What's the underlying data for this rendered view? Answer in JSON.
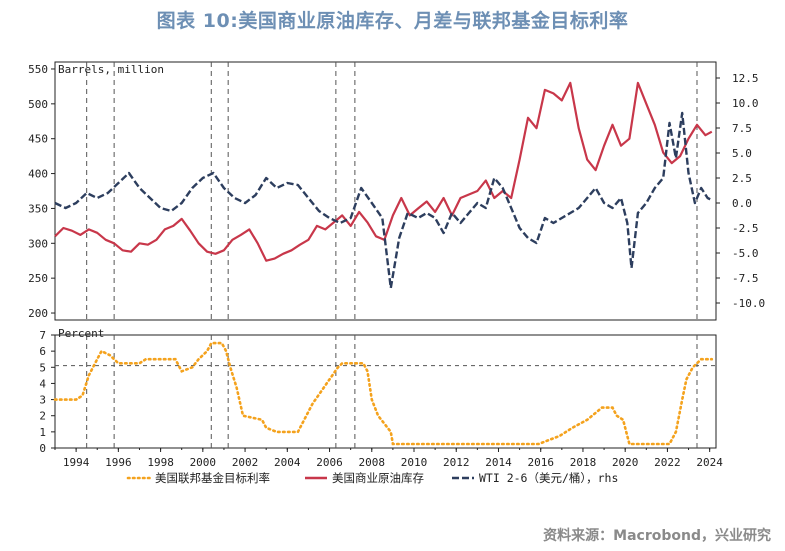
{
  "title": "图表 10:美国商业原油库存、月差与联邦基金目标利率",
  "source": "资料来源：Macrobond，兴业研究",
  "colors": {
    "fed": "#f4a21d",
    "stock": "#c8374a",
    "wti": "#2d3e5e",
    "title": "#6d8fb4"
  },
  "chart_data": [
    {
      "type": "line",
      "panel": "top",
      "ylabel": "Barrels, million",
      "ylim": [
        190,
        560
      ],
      "yticks": [
        200,
        250,
        300,
        350,
        400,
        450,
        500,
        550
      ],
      "y2lim": [
        -11.7,
        14.1
      ],
      "y2ticks": [
        "-10.0",
        "-7.5",
        "-5.0",
        "-2.5",
        "0.0",
        "2.5",
        "5.0",
        "7.5",
        "10.0",
        "12.5"
      ],
      "y2label": "rhs",
      "x_range": [
        1993.0,
        2024.3
      ],
      "series": [
        {
          "name": "美国商业原油库存",
          "axis": "left",
          "style": "solid",
          "points": [
            [
              1993.0,
              310
            ],
            [
              1993.4,
              322
            ],
            [
              1993.8,
              318
            ],
            [
              1994.2,
              312
            ],
            [
              1994.6,
              320
            ],
            [
              1995.0,
              315
            ],
            [
              1995.4,
              305
            ],
            [
              1995.8,
              300
            ],
            [
              1996.2,
              290
            ],
            [
              1996.6,
              288
            ],
            [
              1997.0,
              300
            ],
            [
              1997.4,
              298
            ],
            [
              1997.8,
              305
            ],
            [
              1998.2,
              320
            ],
            [
              1998.6,
              325
            ],
            [
              1999.0,
              335
            ],
            [
              1999.4,
              318
            ],
            [
              1999.8,
              300
            ],
            [
              2000.2,
              288
            ],
            [
              2000.6,
              285
            ],
            [
              2001.0,
              290
            ],
            [
              2001.4,
              305
            ],
            [
              2001.8,
              312
            ],
            [
              2002.2,
              320
            ],
            [
              2002.6,
              300
            ],
            [
              2003.0,
              275
            ],
            [
              2003.4,
              278
            ],
            [
              2003.8,
              285
            ],
            [
              2004.2,
              290
            ],
            [
              2004.6,
              298
            ],
            [
              2005.0,
              305
            ],
            [
              2005.4,
              325
            ],
            [
              2005.8,
              320
            ],
            [
              2006.2,
              330
            ],
            [
              2006.6,
              340
            ],
            [
              2007.0,
              325
            ],
            [
              2007.4,
              345
            ],
            [
              2007.8,
              330
            ],
            [
              2008.2,
              310
            ],
            [
              2008.6,
              305
            ],
            [
              2009.0,
              340
            ],
            [
              2009.4,
              365
            ],
            [
              2009.8,
              340
            ],
            [
              2010.2,
              350
            ],
            [
              2010.6,
              360
            ],
            [
              2011.0,
              345
            ],
            [
              2011.4,
              365
            ],
            [
              2011.8,
              340
            ],
            [
              2012.2,
              365
            ],
            [
              2012.6,
              370
            ],
            [
              2013.0,
              375
            ],
            [
              2013.4,
              390
            ],
            [
              2013.8,
              365
            ],
            [
              2014.2,
              375
            ],
            [
              2014.6,
              365
            ],
            [
              2015.0,
              420
            ],
            [
              2015.4,
              480
            ],
            [
              2015.8,
              465
            ],
            [
              2016.2,
              520
            ],
            [
              2016.6,
              515
            ],
            [
              2017.0,
              505
            ],
            [
              2017.4,
              530
            ],
            [
              2017.8,
              465
            ],
            [
              2018.2,
              420
            ],
            [
              2018.6,
              405
            ],
            [
              2019.0,
              440
            ],
            [
              2019.4,
              470
            ],
            [
              2019.8,
              440
            ],
            [
              2020.2,
              450
            ],
            [
              2020.6,
              530
            ],
            [
              2021.0,
              500
            ],
            [
              2021.4,
              470
            ],
            [
              2021.8,
              430
            ],
            [
              2022.2,
              415
            ],
            [
              2022.6,
              425
            ],
            [
              2023.0,
              450
            ],
            [
              2023.4,
              470
            ],
            [
              2023.8,
              455
            ],
            [
              2024.1,
              460
            ]
          ]
        },
        {
          "name": "WTI 2-6（美元/桶）",
          "axis": "right",
          "style": "dashed",
          "points": [
            [
              1993.0,
              0.0
            ],
            [
              1993.5,
              -0.5
            ],
            [
              1994.0,
              0.0
            ],
            [
              1994.5,
              1.0
            ],
            [
              1995.0,
              0.5
            ],
            [
              1995.5,
              1.0
            ],
            [
              1996.0,
              2.0
            ],
            [
              1996.5,
              3.0
            ],
            [
              1997.0,
              1.5
            ],
            [
              1997.5,
              0.5
            ],
            [
              1998.0,
              -0.5
            ],
            [
              1998.5,
              -0.8
            ],
            [
              1999.0,
              0.0
            ],
            [
              1999.5,
              1.5
            ],
            [
              2000.0,
              2.5
            ],
            [
              2000.5,
              3.0
            ],
            [
              2001.0,
              1.5
            ],
            [
              2001.5,
              0.5
            ],
            [
              2002.0,
              0.0
            ],
            [
              2002.5,
              0.8
            ],
            [
              2003.0,
              2.5
            ],
            [
              2003.5,
              1.5
            ],
            [
              2004.0,
              2.0
            ],
            [
              2004.5,
              1.8
            ],
            [
              2005.0,
              0.5
            ],
            [
              2005.5,
              -0.8
            ],
            [
              2006.0,
              -1.5
            ],
            [
              2006.5,
              -2.0
            ],
            [
              2007.0,
              -1.5
            ],
            [
              2007.5,
              1.5
            ],
            [
              2008.0,
              0.0
            ],
            [
              2008.5,
              -1.5
            ],
            [
              2008.9,
              -8.5
            ],
            [
              2009.3,
              -3.5
            ],
            [
              2009.7,
              -1.0
            ],
            [
              2010.2,
              -1.5
            ],
            [
              2010.6,
              -1.0
            ],
            [
              2011.0,
              -1.5
            ],
            [
              2011.4,
              -3.0
            ],
            [
              2011.8,
              -1.0
            ],
            [
              2012.2,
              -2.0
            ],
            [
              2012.6,
              -1.0
            ],
            [
              2013.0,
              0.0
            ],
            [
              2013.4,
              -0.5
            ],
            [
              2013.8,
              2.5
            ],
            [
              2014.2,
              1.5
            ],
            [
              2014.6,
              -0.5
            ],
            [
              2015.0,
              -2.5
            ],
            [
              2015.4,
              -3.5
            ],
            [
              2015.8,
              -4.0
            ],
            [
              2016.2,
              -1.5
            ],
            [
              2016.6,
              -2.0
            ],
            [
              2017.0,
              -1.5
            ],
            [
              2017.4,
              -1.0
            ],
            [
              2017.8,
              -0.5
            ],
            [
              2018.2,
              0.5
            ],
            [
              2018.6,
              1.5
            ],
            [
              2019.0,
              0.0
            ],
            [
              2019.4,
              -0.5
            ],
            [
              2019.8,
              0.5
            ],
            [
              2020.1,
              -2.0
            ],
            [
              2020.3,
              -6.5
            ],
            [
              2020.6,
              -1.0
            ],
            [
              2021.0,
              0.0
            ],
            [
              2021.4,
              1.5
            ],
            [
              2021.8,
              2.5
            ],
            [
              2022.1,
              8.0
            ],
            [
              2022.4,
              4.5
            ],
            [
              2022.7,
              9.0
            ],
            [
              2023.0,
              3.0
            ],
            [
              2023.3,
              0.0
            ],
            [
              2023.6,
              1.5
            ],
            [
              2023.9,
              0.5
            ],
            [
              2024.1,
              0.3
            ]
          ]
        }
      ]
    },
    {
      "type": "line",
      "panel": "bottom",
      "ylabel": "Percent",
      "ylim": [
        0,
        7
      ],
      "yticks": [
        0,
        1,
        2,
        3,
        4,
        5,
        6,
        7
      ],
      "reference_line": 5.1,
      "x_range": [
        1993.0,
        2024.3
      ],
      "xticks": [
        "1994",
        "1996",
        "1998",
        "2000",
        "2002",
        "2004",
        "2006",
        "2008",
        "2010",
        "2012",
        "2014",
        "2016",
        "2018",
        "2020",
        "2022",
        "2024"
      ],
      "vlines": [
        1994.5,
        1995.8,
        2000.4,
        2001.2,
        2006.3,
        2007.2,
        2023.4
      ],
      "series": [
        {
          "name": "美国联邦基金目标利率",
          "axis": "left",
          "style": "dotted",
          "points": [
            [
              1993.0,
              3.0
            ],
            [
              1994.0,
              3.0
            ],
            [
              1994.3,
              3.25
            ],
            [
              1994.6,
              4.5
            ],
            [
              1995.0,
              5.5
            ],
            [
              1995.2,
              6.0
            ],
            [
              1995.6,
              5.75
            ],
            [
              1996.0,
              5.25
            ],
            [
              1997.0,
              5.25
            ],
            [
              1997.3,
              5.5
            ],
            [
              1998.7,
              5.5
            ],
            [
              1998.9,
              5.0
            ],
            [
              1999.0,
              4.75
            ],
            [
              1999.5,
              5.0
            ],
            [
              1999.8,
              5.5
            ],
            [
              2000.2,
              6.0
            ],
            [
              2000.4,
              6.5
            ],
            [
              2000.9,
              6.5
            ],
            [
              2001.1,
              6.0
            ],
            [
              2001.3,
              5.0
            ],
            [
              2001.6,
              3.75
            ],
            [
              2001.9,
              2.0
            ],
            [
              2002.8,
              1.75
            ],
            [
              2003.0,
              1.25
            ],
            [
              2003.5,
              1.0
            ],
            [
              2004.5,
              1.0
            ],
            [
              2004.8,
              1.75
            ],
            [
              2005.2,
              2.75
            ],
            [
              2005.6,
              3.5
            ],
            [
              2006.0,
              4.25
            ],
            [
              2006.4,
              5.0
            ],
            [
              2006.6,
              5.25
            ],
            [
              2007.6,
              5.25
            ],
            [
              2007.8,
              4.75
            ],
            [
              2008.0,
              3.0
            ],
            [
              2008.3,
              2.0
            ],
            [
              2008.9,
              1.0
            ],
            [
              2009.0,
              0.25
            ],
            [
              2015.9,
              0.25
            ],
            [
              2016.9,
              0.75
            ],
            [
              2017.5,
              1.25
            ],
            [
              2018.2,
              1.75
            ],
            [
              2018.9,
              2.5
            ],
            [
              2019.4,
              2.5
            ],
            [
              2019.6,
              2.0
            ],
            [
              2019.9,
              1.75
            ],
            [
              2020.2,
              0.25
            ],
            [
              2022.1,
              0.25
            ],
            [
              2022.4,
              1.0
            ],
            [
              2022.7,
              3.0
            ],
            [
              2022.9,
              4.25
            ],
            [
              2023.2,
              5.0
            ],
            [
              2023.6,
              5.5
            ],
            [
              2024.1,
              5.5
            ]
          ]
        }
      ]
    }
  ],
  "legend": [
    {
      "label": "美国联邦基金目标利率",
      "style": "dotted",
      "color": "#f4a21d"
    },
    {
      "label": "美国商业原油库存",
      "style": "solid",
      "color": "#c8374a"
    },
    {
      "label": "WTI 2-6（美元/桶），rhs",
      "style": "dashed",
      "color": "#2d3e5e"
    }
  ]
}
